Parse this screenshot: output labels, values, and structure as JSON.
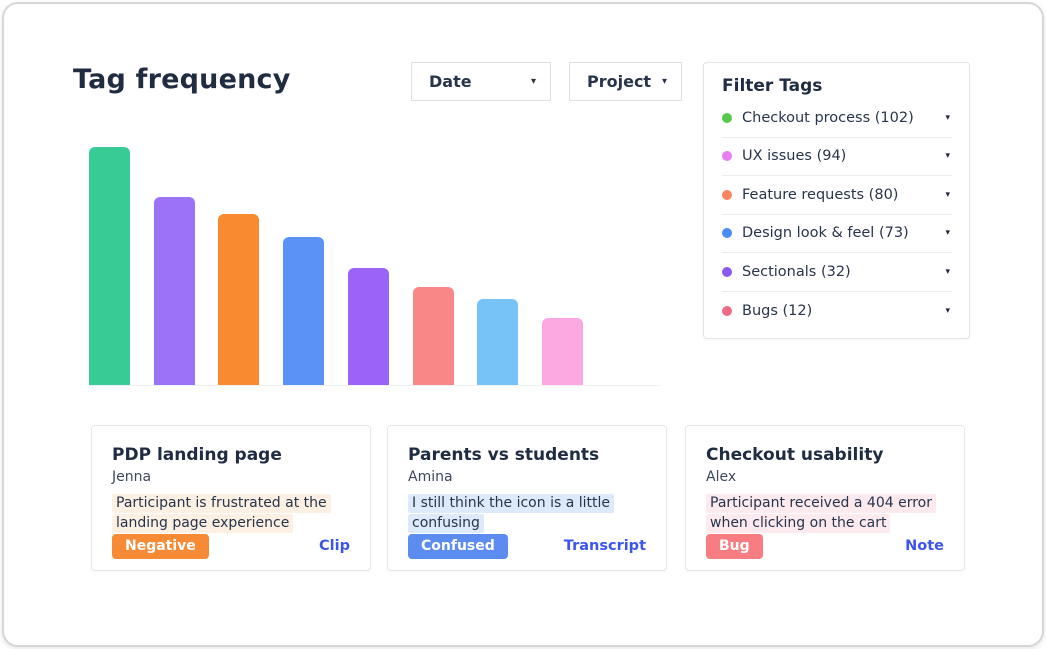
{
  "page_title": "Tag frequency",
  "toolbar": {
    "date_dropdown": "Date",
    "project_dropdown": "Project",
    "caret_glyph": "▾"
  },
  "filter_panel": {
    "title": "Filter Tags",
    "caret_glyph": "▾",
    "items": [
      {
        "label": "Checkout process (102)",
        "dot_color": "#56c84e"
      },
      {
        "label": "UX issues (94)",
        "dot_color": "#e97ef0"
      },
      {
        "label": "Feature requests (80)",
        "dot_color": "#f98660"
      },
      {
        "label": "Design look & feel (73)",
        "dot_color": "#4a8bf4"
      },
      {
        "label": "Sectionals (32)",
        "dot_color": "#8a5af2"
      },
      {
        "label": "Bugs (12)",
        "dot_color": "#ef6a85"
      }
    ]
  },
  "chart_data": {
    "type": "bar",
    "title": "Tag frequency",
    "categories": [
      "",
      "",
      "",
      "",
      "",
      "",
      "",
      ""
    ],
    "values": [
      100,
      79,
      72,
      62,
      49,
      41,
      36,
      28
    ],
    "value_note": "bars are unlabeled in the UI; values are relative heights as % of tallest bar",
    "colors": [
      "#38cb96",
      "#9c73f8",
      "#f98a2f",
      "#5b93f5",
      "#9b63f7",
      "#f98787",
      "#77c3f7",
      "#fba9e0"
    ],
    "xlabel": "",
    "ylabel": "",
    "axes_visible": false,
    "grid": false,
    "legend": false
  },
  "cards": [
    {
      "title": "PDP landing page",
      "author": "Jenna",
      "quote": "Participant is frustrated at the landing page experience",
      "highlight_color": "#fbf0e2",
      "badge": "Negative",
      "badge_color": "#f78a34",
      "link": "Clip"
    },
    {
      "title": "Parents vs students",
      "author": "Amina",
      "quote": "I still think the icon is a little confusing",
      "highlight_color": "#ddeafc",
      "badge": "Confused",
      "badge_color": "#5c8cf0",
      "link": "Transcript"
    },
    {
      "title": "Checkout usability",
      "author": "Alex",
      "quote": "Participant received a 404 error when clicking on the cart",
      "highlight_color": "#fdeaef",
      "badge": "Bug",
      "badge_color": "#f87d83",
      "link": "Note"
    }
  ]
}
